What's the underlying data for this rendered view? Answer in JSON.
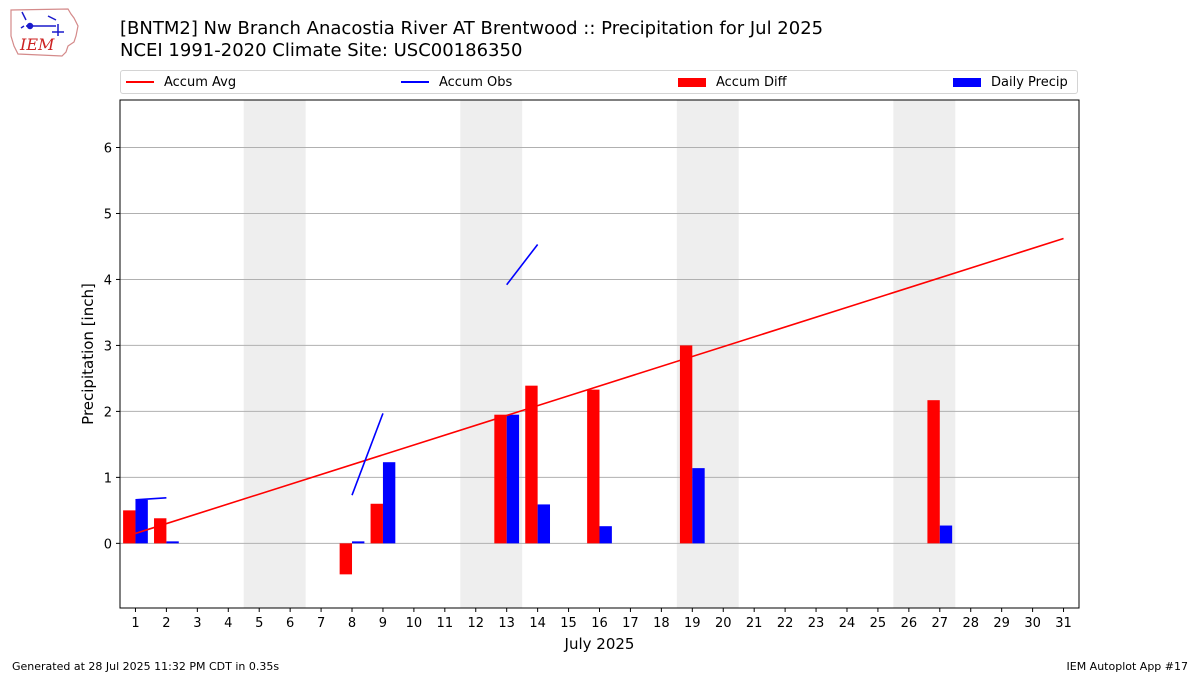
{
  "logo": {
    "text": "IEM",
    "icon": "iem-iowa-logo"
  },
  "header": {
    "title": "[BNTM2] Nw Branch Anacostia River  AT Brentwood :: Precipitation for Jul 2025",
    "subtitle": "NCEI 1991-2020 Climate Site: USC00186350"
  },
  "legend": [
    {
      "label": "Accum Avg",
      "type": "line",
      "color": "#ff0000"
    },
    {
      "label": "Accum Obs",
      "type": "line",
      "color": "#0000ff"
    },
    {
      "label": "Accum Diff",
      "type": "box",
      "color": "#ff0000"
    },
    {
      "label": "Daily Precip",
      "type": "box",
      "color": "#0000ff"
    }
  ],
  "footer": {
    "left": "Generated at 28 Jul 2025 11:32 PM CDT in 0.35s",
    "right": "IEM Autoplot App #17"
  },
  "chart_data": {
    "type": "bar",
    "xlabel": "July 2025",
    "ylabel": "Precipitation [inch]",
    "xlim": [
      0.5,
      31.5
    ],
    "ylim": [
      -0.98,
      6.72
    ],
    "yticks": [
      0,
      1,
      2,
      3,
      4,
      5,
      6
    ],
    "xticks": [
      1,
      2,
      3,
      4,
      5,
      6,
      7,
      8,
      9,
      10,
      11,
      12,
      13,
      14,
      15,
      16,
      17,
      18,
      19,
      20,
      21,
      22,
      23,
      24,
      25,
      26,
      27,
      28,
      29,
      30,
      31
    ],
    "grid": "y",
    "legend_position": "top",
    "weekend_shading": [
      [
        4.5,
        6.5
      ],
      [
        11.5,
        13.5
      ],
      [
        18.5,
        20.5
      ],
      [
        25.5,
        27.5
      ]
    ],
    "accum_avg": {
      "start": [
        1,
        0.15
      ],
      "end": [
        31,
        4.62
      ]
    },
    "accum_obs_segments": [
      [
        [
          1,
          0.66
        ],
        [
          2,
          0.69
        ]
      ],
      [
        [
          8,
          0.73
        ],
        [
          9,
          1.97
        ]
      ],
      [
        [
          13,
          3.92
        ],
        [
          14,
          4.53
        ]
      ]
    ],
    "accum_diff": [
      {
        "day": 1,
        "value": 0.5
      },
      {
        "day": 2,
        "value": 0.38
      },
      {
        "day": 8,
        "value": -0.47
      },
      {
        "day": 9,
        "value": 0.6
      },
      {
        "day": 13,
        "value": 1.95
      },
      {
        "day": 14,
        "value": 2.39
      },
      {
        "day": 16,
        "value": 2.33
      },
      {
        "day": 19,
        "value": 3.0
      },
      {
        "day": 27,
        "value": 2.17
      }
    ],
    "daily_precip": [
      {
        "day": 1,
        "value": 0.66
      },
      {
        "day": 2,
        "value": 0.03
      },
      {
        "day": 8,
        "value": 0.03
      },
      {
        "day": 9,
        "value": 1.23
      },
      {
        "day": 13,
        "value": 1.95
      },
      {
        "day": 14,
        "value": 0.59
      },
      {
        "day": 16,
        "value": 0.26
      },
      {
        "day": 19,
        "value": 1.14
      },
      {
        "day": 27,
        "value": 0.27
      }
    ]
  }
}
